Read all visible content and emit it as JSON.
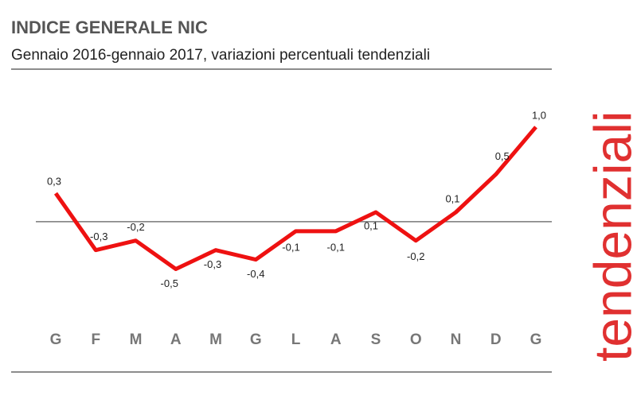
{
  "chart_data": {
    "type": "line",
    "title": "INDICE GENERALE NIC",
    "subtitle": "Gennaio 2016-gennaio 2017, variazioni percentuali tendenziali",
    "side_label": "tendenziali",
    "categories": [
      "G",
      "F",
      "M",
      "A",
      "M",
      "G",
      "L",
      "A",
      "S",
      "O",
      "N",
      "D",
      "G"
    ],
    "values": [
      0.3,
      -0.3,
      -0.2,
      -0.5,
      -0.3,
      -0.4,
      -0.1,
      -0.1,
      0.1,
      -0.2,
      0.1,
      0.5,
      1.0
    ],
    "value_labels": [
      "0,3",
      "-0,3",
      "-0,2",
      "-0,5",
      "-0,3",
      "-0,4",
      "-0,1",
      "-0,1",
      "0,1",
      "-0,2",
      "0,1",
      "0,5",
      "1,0"
    ],
    "color": "#ee1111",
    "ylim": [
      -1,
      1.2
    ]
  }
}
